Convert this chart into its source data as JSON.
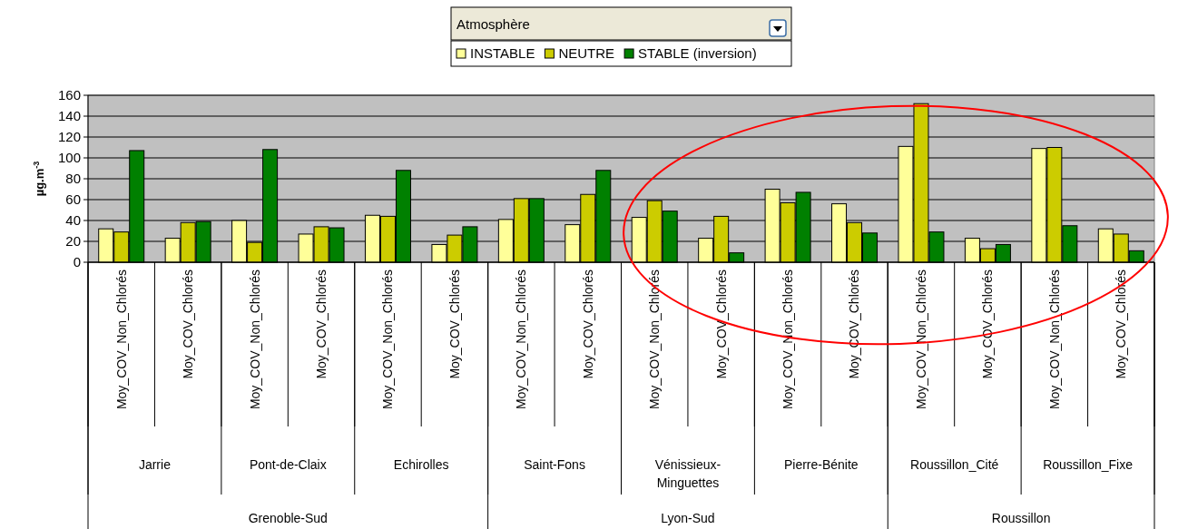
{
  "chart_data": {
    "type": "bar",
    "legend_title": "Atmosphère",
    "ylabel": "µg.m$^{-3}$",
    "categories": [
      "Moy_COV_Non_Chlorés",
      "Moy_COV_Chlorés",
      "Moy_COV_Non_Chlorés",
      "Moy_COV_Chlorés",
      "Moy_COV_Non_Chlorés",
      "Moy_COV_Chlorés",
      "Moy_COV_Non_Chlorés",
      "Moy_COV_Chlorés",
      "Moy_COV_Non_Chlorés",
      "Moy_COV_Chlorés",
      "Moy_COV_Non_Chlorés",
      "Moy_COV_Chlorés",
      "Moy_COV_Non_Chlorés",
      "Moy_COV_Chlorés",
      "Moy_COV_Non_Chlorés",
      "Moy_COV_Chlorés"
    ],
    "annotations": [
      "Jarrie",
      "Pont-de-Claix",
      "Echirolles",
      "Saint-Fons",
      "Vénissieux-Minguettes",
      "Pierre-Bénite",
      "Roussillon_Cité",
      "Roussillon_Fixe",
      "Grenoble-Sud",
      "Lyon-Sud",
      "Roussillon"
    ],
    "series": [
      {
        "name": "INSTABLE",
        "color": "#ffff99",
        "values": [
          32,
          23,
          40,
          27,
          45,
          17,
          41,
          36,
          43,
          23,
          70,
          56,
          111,
          23,
          109,
          32
        ]
      },
      {
        "name": "NEUTRE",
        "color": "#cccc00",
        "values": [
          29,
          38,
          19,
          34,
          44,
          26,
          61,
          65,
          59,
          44,
          57,
          38,
          152,
          13,
          110,
          27
        ]
      },
      {
        "name": "STABLE (inversion)",
        "color": "#008000",
        "values": [
          107,
          39,
          108,
          33,
          88,
          34,
          61,
          88,
          49,
          9,
          67,
          28,
          29,
          17,
          35,
          11
        ]
      }
    ],
    "ylim": [
      0,
      160
    ],
    "yticks": [
      0,
      20,
      40,
      60,
      80,
      100,
      120,
      140,
      160
    ],
    "grid": "y",
    "legend": "top"
  }
}
